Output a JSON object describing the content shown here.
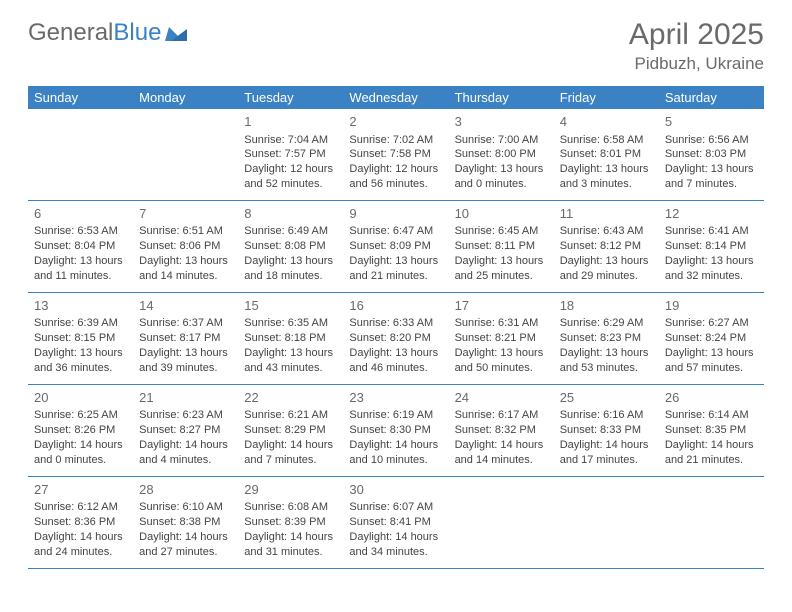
{
  "logo": {
    "text1": "General",
    "text2": "Blue"
  },
  "header": {
    "month": "April 2025",
    "location": "Pidbuzh, Ukraine"
  },
  "colors": {
    "accent": "#3b82c4",
    "text_gray": "#6a6a6a",
    "body_text": "#444444",
    "bg": "#ffffff"
  },
  "dayNames": [
    "Sunday",
    "Monday",
    "Tuesday",
    "Wednesday",
    "Thursday",
    "Friday",
    "Saturday"
  ],
  "weeks": [
    [
      null,
      null,
      {
        "date": "1",
        "sunrise": "Sunrise: 7:04 AM",
        "sunset": "Sunset: 7:57 PM",
        "daylight": "Daylight: 12 hours and 52 minutes."
      },
      {
        "date": "2",
        "sunrise": "Sunrise: 7:02 AM",
        "sunset": "Sunset: 7:58 PM",
        "daylight": "Daylight: 12 hours and 56 minutes."
      },
      {
        "date": "3",
        "sunrise": "Sunrise: 7:00 AM",
        "sunset": "Sunset: 8:00 PM",
        "daylight": "Daylight: 13 hours and 0 minutes."
      },
      {
        "date": "4",
        "sunrise": "Sunrise: 6:58 AM",
        "sunset": "Sunset: 8:01 PM",
        "daylight": "Daylight: 13 hours and 3 minutes."
      },
      {
        "date": "5",
        "sunrise": "Sunrise: 6:56 AM",
        "sunset": "Sunset: 8:03 PM",
        "daylight": "Daylight: 13 hours and 7 minutes."
      }
    ],
    [
      {
        "date": "6",
        "sunrise": "Sunrise: 6:53 AM",
        "sunset": "Sunset: 8:04 PM",
        "daylight": "Daylight: 13 hours and 11 minutes."
      },
      {
        "date": "7",
        "sunrise": "Sunrise: 6:51 AM",
        "sunset": "Sunset: 8:06 PM",
        "daylight": "Daylight: 13 hours and 14 minutes."
      },
      {
        "date": "8",
        "sunrise": "Sunrise: 6:49 AM",
        "sunset": "Sunset: 8:08 PM",
        "daylight": "Daylight: 13 hours and 18 minutes."
      },
      {
        "date": "9",
        "sunrise": "Sunrise: 6:47 AM",
        "sunset": "Sunset: 8:09 PM",
        "daylight": "Daylight: 13 hours and 21 minutes."
      },
      {
        "date": "10",
        "sunrise": "Sunrise: 6:45 AM",
        "sunset": "Sunset: 8:11 PM",
        "daylight": "Daylight: 13 hours and 25 minutes."
      },
      {
        "date": "11",
        "sunrise": "Sunrise: 6:43 AM",
        "sunset": "Sunset: 8:12 PM",
        "daylight": "Daylight: 13 hours and 29 minutes."
      },
      {
        "date": "12",
        "sunrise": "Sunrise: 6:41 AM",
        "sunset": "Sunset: 8:14 PM",
        "daylight": "Daylight: 13 hours and 32 minutes."
      }
    ],
    [
      {
        "date": "13",
        "sunrise": "Sunrise: 6:39 AM",
        "sunset": "Sunset: 8:15 PM",
        "daylight": "Daylight: 13 hours and 36 minutes."
      },
      {
        "date": "14",
        "sunrise": "Sunrise: 6:37 AM",
        "sunset": "Sunset: 8:17 PM",
        "daylight": "Daylight: 13 hours and 39 minutes."
      },
      {
        "date": "15",
        "sunrise": "Sunrise: 6:35 AM",
        "sunset": "Sunset: 8:18 PM",
        "daylight": "Daylight: 13 hours and 43 minutes."
      },
      {
        "date": "16",
        "sunrise": "Sunrise: 6:33 AM",
        "sunset": "Sunset: 8:20 PM",
        "daylight": "Daylight: 13 hours and 46 minutes."
      },
      {
        "date": "17",
        "sunrise": "Sunrise: 6:31 AM",
        "sunset": "Sunset: 8:21 PM",
        "daylight": "Daylight: 13 hours and 50 minutes."
      },
      {
        "date": "18",
        "sunrise": "Sunrise: 6:29 AM",
        "sunset": "Sunset: 8:23 PM",
        "daylight": "Daylight: 13 hours and 53 minutes."
      },
      {
        "date": "19",
        "sunrise": "Sunrise: 6:27 AM",
        "sunset": "Sunset: 8:24 PM",
        "daylight": "Daylight: 13 hours and 57 minutes."
      }
    ],
    [
      {
        "date": "20",
        "sunrise": "Sunrise: 6:25 AM",
        "sunset": "Sunset: 8:26 PM",
        "daylight": "Daylight: 14 hours and 0 minutes."
      },
      {
        "date": "21",
        "sunrise": "Sunrise: 6:23 AM",
        "sunset": "Sunset: 8:27 PM",
        "daylight": "Daylight: 14 hours and 4 minutes."
      },
      {
        "date": "22",
        "sunrise": "Sunrise: 6:21 AM",
        "sunset": "Sunset: 8:29 PM",
        "daylight": "Daylight: 14 hours and 7 minutes."
      },
      {
        "date": "23",
        "sunrise": "Sunrise: 6:19 AM",
        "sunset": "Sunset: 8:30 PM",
        "daylight": "Daylight: 14 hours and 10 minutes."
      },
      {
        "date": "24",
        "sunrise": "Sunrise: 6:17 AM",
        "sunset": "Sunset: 8:32 PM",
        "daylight": "Daylight: 14 hours and 14 minutes."
      },
      {
        "date": "25",
        "sunrise": "Sunrise: 6:16 AM",
        "sunset": "Sunset: 8:33 PM",
        "daylight": "Daylight: 14 hours and 17 minutes."
      },
      {
        "date": "26",
        "sunrise": "Sunrise: 6:14 AM",
        "sunset": "Sunset: 8:35 PM",
        "daylight": "Daylight: 14 hours and 21 minutes."
      }
    ],
    [
      {
        "date": "27",
        "sunrise": "Sunrise: 6:12 AM",
        "sunset": "Sunset: 8:36 PM",
        "daylight": "Daylight: 14 hours and 24 minutes."
      },
      {
        "date": "28",
        "sunrise": "Sunrise: 6:10 AM",
        "sunset": "Sunset: 8:38 PM",
        "daylight": "Daylight: 14 hours and 27 minutes."
      },
      {
        "date": "29",
        "sunrise": "Sunrise: 6:08 AM",
        "sunset": "Sunset: 8:39 PM",
        "daylight": "Daylight: 14 hours and 31 minutes."
      },
      {
        "date": "30",
        "sunrise": "Sunrise: 6:07 AM",
        "sunset": "Sunset: 8:41 PM",
        "daylight": "Daylight: 14 hours and 34 minutes."
      },
      null,
      null,
      null
    ]
  ]
}
